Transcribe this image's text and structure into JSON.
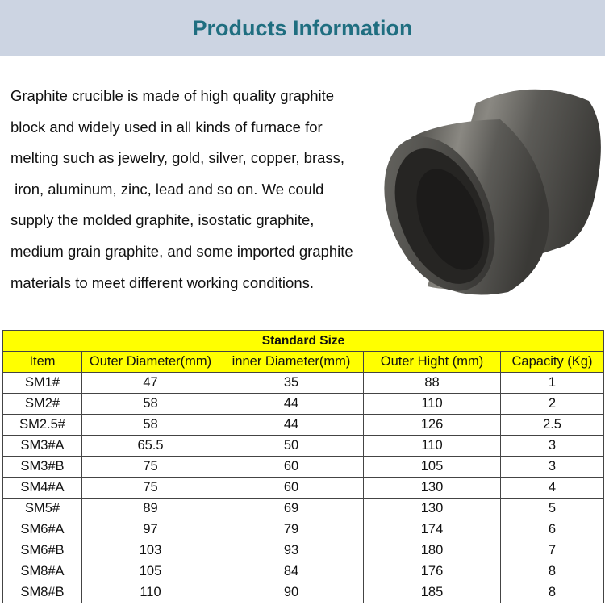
{
  "header": {
    "title": "Products Information"
  },
  "description": {
    "lines": [
      "Graphite crucible is made of high quality graphite",
      "block and widely used in all kinds of furnace for",
      "melting such as jewelry, gold, silver, copper, brass,",
      " iron, aluminum, zinc, lead and so on. We could",
      "supply the molded graphite, isostatic graphite,",
      "medium grain graphite, and some imported graphite",
      "materials to meet different working conditions."
    ]
  },
  "table": {
    "title": "Standard Size",
    "highlight_color": "#ffff00",
    "headers": [
      "Item",
      "Outer Diameter(mm)",
      "inner Diameter(mm)",
      "Outer Hight (mm)",
      "Capacity (Kg)"
    ],
    "rows": [
      [
        "SM1#",
        "47",
        "35",
        "88",
        "1"
      ],
      [
        "SM2#",
        "58",
        "44",
        "110",
        "2"
      ],
      [
        "SM2.5#",
        "58",
        "44",
        "126",
        "2.5"
      ],
      [
        "SM3#A",
        "65.5",
        "50",
        "110",
        "3"
      ],
      [
        "SM3#B",
        "75",
        "60",
        "105",
        "3"
      ],
      [
        "SM4#A",
        "75",
        "60",
        "130",
        "4"
      ],
      [
        "SM5#",
        "89",
        "69",
        "130",
        "5"
      ],
      [
        "SM6#A",
        "97",
        "79",
        "174",
        "6"
      ],
      [
        "SM6#B",
        "103",
        "93",
        "180",
        "7"
      ],
      [
        "SM8#A",
        "105",
        "84",
        "176",
        "8"
      ],
      [
        "SM8#B",
        "110",
        "90",
        "185",
        "8"
      ]
    ]
  }
}
